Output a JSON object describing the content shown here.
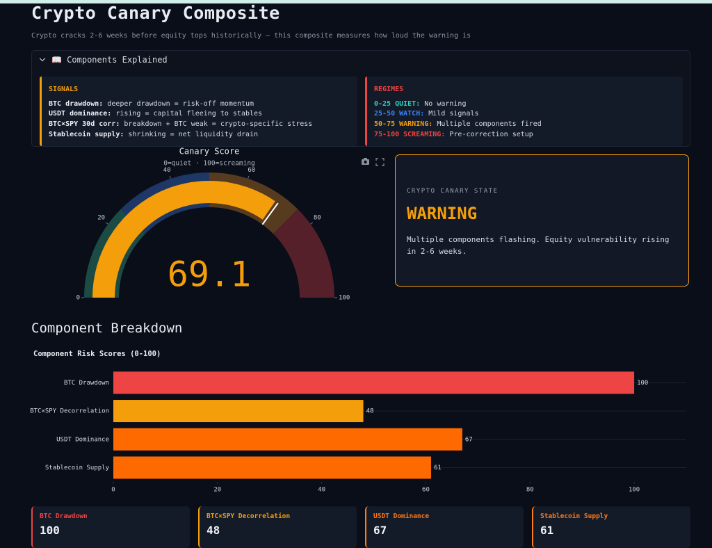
{
  "header": {
    "title": "Crypto Canary Composite",
    "subtitle": "Crypto cracks 2-6 weeks before equity tops historically — this composite measures how loud the warning is"
  },
  "explainer": {
    "toggle": "📖 Components Explained",
    "signals": {
      "title": "SIGNALS",
      "items": [
        {
          "key": "BTC drawdown:",
          "text": " deeper drawdown = risk-off momentum"
        },
        {
          "key": "USDT dominance:",
          "text": " rising = capital fleeing to stables"
        },
        {
          "key": "BTC×SPY 30d corr:",
          "text": " breakdown + BTC weak = crypto-specific stress"
        },
        {
          "key": "Stablecoin supply:",
          "text": " shrinking = net liquidity drain"
        }
      ]
    },
    "regimes": {
      "title": "REGIMES",
      "items": [
        {
          "key": "0-25 QUIET:",
          "text": " No warning",
          "color": "#2dd4bf"
        },
        {
          "key": "25-50 WATCH:",
          "text": " Mild signals",
          "color": "#3b82f6"
        },
        {
          "key": "50-75 WARNING:",
          "text": " Multiple components fired",
          "color": "#f59e0b"
        },
        {
          "key": "75-100 SCREAMING:",
          "text": " Pre-correction setup",
          "color": "#ef4444"
        }
      ]
    }
  },
  "state": {
    "label": "CRYPTO CANARY STATE",
    "level": "WARNING",
    "description": "Multiple components flashing. Equity vulnerability rising in 2-6 weeks."
  },
  "section_title": "Component Breakdown",
  "chart_data": [
    {
      "type": "gauge",
      "title": "Canary Score",
      "subtitle": "0=quiet · 100=screaming",
      "value": 69.1,
      "range": [
        0,
        100
      ],
      "ticks": [
        0,
        20,
        40,
        60,
        80,
        100
      ],
      "bar_color": "#f59e0b",
      "threshold": 70,
      "threshold_color": "#ffffff",
      "steps": [
        {
          "range": [
            0,
            25
          ],
          "color": "#1c4a44"
        },
        {
          "range": [
            25,
            50
          ],
          "color": "#1d3766"
        },
        {
          "range": [
            50,
            75
          ],
          "color": "#563b1f"
        },
        {
          "range": [
            75,
            100
          ],
          "color": "#55202a"
        }
      ]
    },
    {
      "type": "bar",
      "orientation": "horizontal",
      "title": "Component Risk Scores (0-100)",
      "categories": [
        "BTC Drawdown",
        "BTC×SPY Decorrelation",
        "USDT Dominance",
        "Stablecoin Supply"
      ],
      "values": [
        100,
        48,
        67,
        61
      ],
      "colors": [
        "#ef4444",
        "#f59e0b",
        "#ff6a00",
        "#ff6a00"
      ],
      "xlim": [
        0,
        110
      ],
      "xticks": [
        0,
        20,
        40,
        60,
        80,
        100
      ]
    }
  ],
  "cards": [
    {
      "label": "BTC Drawdown",
      "value": 100,
      "color": "#ef4444"
    },
    {
      "label": "BTC×SPY Decorrelation",
      "value": 48,
      "color": "#f59e0b"
    },
    {
      "label": "USDT Dominance",
      "value": 67,
      "color": "#ff7a1a"
    },
    {
      "label": "Stablecoin Supply",
      "value": 61,
      "color": "#ff7a1a"
    }
  ]
}
